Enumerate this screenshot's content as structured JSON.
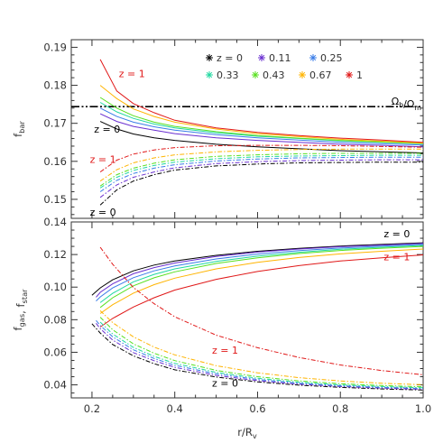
{
  "chart_data": [
    {
      "type": "line",
      "panel": "top",
      "ylabel": "f_bar",
      "xlim": [
        0.15,
        1.0
      ],
      "ylim": [
        0.145,
        0.192
      ],
      "xticks": [
        "0.2",
        "0.4",
        "0.6",
        "0.8",
        "1.0"
      ],
      "yticks": [
        "0.15",
        "0.16",
        "0.17",
        "0.18",
        "0.19"
      ],
      "grid": false,
      "legend": {
        "placement": "top-right",
        "entries": [
          {
            "label": "z = 0",
            "color": "#000000"
          },
          {
            "label": "0.11",
            "color": "#6a2fd0"
          },
          {
            "label": "0.25",
            "color": "#3a7de8"
          },
          {
            "label": "0.33",
            "color": "#20d8a0"
          },
          {
            "label": "0.43",
            "color": "#58e020"
          },
          {
            "label": "0.67",
            "color": "#ffb400"
          },
          {
            "label": "1",
            "color": "#e01818"
          }
        ]
      },
      "reference_line": {
        "label": "Ω_b/Ω_m",
        "y": 0.1744,
        "style": "dash-dot-dot"
      },
      "annotations": [
        {
          "text": "z = 1",
          "x": 0.265,
          "y": 0.1822,
          "color": "#e01818"
        },
        {
          "text": "z = 0",
          "x": 0.205,
          "y": 0.1675,
          "color": "#000000"
        },
        {
          "text": "z = 1",
          "x": 0.195,
          "y": 0.1596,
          "color": "#e01818"
        },
        {
          "text": "z = 0",
          "x": 0.195,
          "y": 0.1457,
          "color": "#000000"
        }
      ],
      "series": [
        {
          "redshift": "0",
          "color": "#000000",
          "style": "solid",
          "x": [
            0.22,
            0.26,
            0.3,
            0.35,
            0.4,
            0.5,
            0.6,
            0.7,
            0.8,
            0.9,
            1.0
          ],
          "values": [
            0.1705,
            0.1685,
            0.1672,
            0.1662,
            0.1655,
            0.1645,
            0.1638,
            0.1633,
            0.1628,
            0.1625,
            0.1622
          ]
        },
        {
          "redshift": "0.11",
          "color": "#6a2fd0",
          "style": "solid",
          "x": [
            0.22,
            0.26,
            0.3,
            0.35,
            0.4,
            0.5,
            0.6,
            0.7,
            0.8,
            0.9,
            1.0
          ],
          "values": [
            0.1725,
            0.1705,
            0.1692,
            0.1682,
            0.1673,
            0.1662,
            0.1655,
            0.165,
            0.1645,
            0.1642,
            0.1638
          ]
        },
        {
          "redshift": "0.25",
          "color": "#3a7de8",
          "style": "solid",
          "x": [
            0.22,
            0.26,
            0.3,
            0.35,
            0.4,
            0.5,
            0.6,
            0.7,
            0.8,
            0.9,
            1.0
          ],
          "values": [
            0.174,
            0.1718,
            0.1703,
            0.1691,
            0.1682,
            0.167,
            0.1662,
            0.1656,
            0.165,
            0.1646,
            0.1643
          ]
        },
        {
          "redshift": "0.33",
          "color": "#20d8a0",
          "style": "solid",
          "x": [
            0.22,
            0.26,
            0.3,
            0.35,
            0.4,
            0.5,
            0.6,
            0.7,
            0.8,
            0.9,
            1.0
          ],
          "values": [
            0.1755,
            0.173,
            0.1713,
            0.1698,
            0.1688,
            0.1675,
            0.1666,
            0.166,
            0.1654,
            0.165,
            0.1646
          ]
        },
        {
          "redshift": "0.43",
          "color": "#58e020",
          "style": "solid",
          "x": [
            0.22,
            0.26,
            0.3,
            0.35,
            0.4,
            0.5,
            0.6,
            0.7,
            0.8,
            0.9,
            1.0
          ],
          "values": [
            0.1768,
            0.174,
            0.172,
            0.1703,
            0.1692,
            0.1678,
            0.1668,
            0.1661,
            0.1655,
            0.1651,
            0.1647
          ]
        },
        {
          "redshift": "0.67",
          "color": "#ffb400",
          "style": "solid",
          "x": [
            0.22,
            0.26,
            0.3,
            0.35,
            0.4,
            0.5,
            0.6,
            0.7,
            0.8,
            0.9,
            1.0
          ],
          "values": [
            0.18,
            0.1765,
            0.1738,
            0.1718,
            0.1703,
            0.1685,
            0.1673,
            0.1665,
            0.1658,
            0.1653,
            0.1648
          ]
        },
        {
          "redshift": "1",
          "color": "#e01818",
          "style": "solid",
          "x": [
            0.22,
            0.26,
            0.3,
            0.35,
            0.4,
            0.5,
            0.6,
            0.7,
            0.8,
            0.9,
            1.0
          ],
          "values": [
            0.1868,
            0.1785,
            0.1752,
            0.1728,
            0.1708,
            0.1688,
            0.1676,
            0.1668,
            0.1661,
            0.1656,
            0.165
          ]
        },
        {
          "redshift": "0",
          "color": "#000000",
          "style": "dashdot",
          "x": [
            0.22,
            0.26,
            0.3,
            0.35,
            0.4,
            0.5,
            0.6,
            0.7,
            0.8,
            0.9,
            1.0
          ],
          "values": [
            0.1485,
            0.1525,
            0.1548,
            0.1565,
            0.1577,
            0.1588,
            0.1593,
            0.1596,
            0.1597,
            0.1598,
            0.1598
          ]
        },
        {
          "redshift": "0.11",
          "color": "#6a2fd0",
          "style": "dashdot",
          "x": [
            0.22,
            0.26,
            0.3,
            0.35,
            0.4,
            0.5,
            0.6,
            0.7,
            0.8,
            0.9,
            1.0
          ],
          "values": [
            0.1505,
            0.1538,
            0.1558,
            0.1572,
            0.1583,
            0.1594,
            0.1599,
            0.1602,
            0.1603,
            0.1604,
            0.1604
          ]
        },
        {
          "redshift": "0.25",
          "color": "#3a7de8",
          "style": "dashdot",
          "x": [
            0.22,
            0.26,
            0.3,
            0.35,
            0.4,
            0.5,
            0.6,
            0.7,
            0.8,
            0.9,
            1.0
          ],
          "values": [
            0.152,
            0.155,
            0.1568,
            0.1582,
            0.1591,
            0.1601,
            0.1606,
            0.1609,
            0.161,
            0.1611,
            0.1611
          ]
        },
        {
          "redshift": "0.33",
          "color": "#20d8a0",
          "style": "dashdot",
          "x": [
            0.22,
            0.26,
            0.3,
            0.35,
            0.4,
            0.5,
            0.6,
            0.7,
            0.8,
            0.9,
            1.0
          ],
          "values": [
            0.153,
            0.1558,
            0.1576,
            0.1589,
            0.1598,
            0.1607,
            0.1612,
            0.1614,
            0.1615,
            0.1616,
            0.1616
          ]
        },
        {
          "redshift": "0.43",
          "color": "#58e020",
          "style": "dashdot",
          "x": [
            0.22,
            0.26,
            0.3,
            0.35,
            0.4,
            0.5,
            0.6,
            0.7,
            0.8,
            0.9,
            1.0
          ],
          "values": [
            0.1535,
            0.1565,
            0.1582,
            0.1595,
            0.1604,
            0.1613,
            0.1617,
            0.162,
            0.1621,
            0.1621,
            0.1621
          ]
        },
        {
          "redshift": "0.67",
          "color": "#ffb400",
          "style": "dashdot",
          "x": [
            0.22,
            0.26,
            0.3,
            0.35,
            0.4,
            0.5,
            0.6,
            0.7,
            0.8,
            0.9,
            1.0
          ],
          "values": [
            0.1548,
            0.1578,
            0.1596,
            0.1609,
            0.1617,
            0.1625,
            0.1629,
            0.1631,
            0.1632,
            0.1632,
            0.1632
          ]
        },
        {
          "redshift": "1",
          "color": "#e01818",
          "style": "dashdot",
          "x": [
            0.22,
            0.26,
            0.3,
            0.35,
            0.4,
            0.5,
            0.6,
            0.7,
            0.8,
            0.9,
            1.0
          ],
          "values": [
            0.1572,
            0.1603,
            0.1619,
            0.163,
            0.1636,
            0.1641,
            0.1642,
            0.1642,
            0.1641,
            0.1639,
            0.1637
          ]
        }
      ]
    },
    {
      "type": "line",
      "panel": "bottom",
      "xlabel": "r/R_v",
      "ylabel": "f_gas, f_star",
      "xlim": [
        0.15,
        1.0
      ],
      "ylim": [
        0.032,
        0.14
      ],
      "xticks": [
        "0.2",
        "0.4",
        "0.6",
        "0.8",
        "1.0"
      ],
      "yticks": [
        "0.04",
        "0.06",
        "0.08",
        "0.10",
        "0.12",
        "0.14"
      ],
      "grid": false,
      "annotations": [
        {
          "text": "z = 0",
          "x": 0.905,
          "y": 0.1305,
          "color": "#000000"
        },
        {
          "text": "z = 1",
          "x": 0.905,
          "y": 0.1165,
          "color": "#e01818"
        },
        {
          "text": "z = 1",
          "x": 0.49,
          "y": 0.0592,
          "color": "#e01818"
        },
        {
          "text": "z = 0",
          "x": 0.49,
          "y": 0.0388,
          "color": "#000000"
        }
      ],
      "series": [
        {
          "redshift": "0",
          "color": "#000000",
          "style": "solid",
          "x": [
            0.2,
            0.22,
            0.25,
            0.3,
            0.35,
            0.4,
            0.5,
            0.6,
            0.7,
            0.8,
            0.9,
            1.0
          ],
          "values": [
            0.095,
            0.0995,
            0.1045,
            0.11,
            0.1135,
            0.116,
            0.1195,
            0.122,
            0.1238,
            0.1252,
            0.1262,
            0.1272
          ]
        },
        {
          "redshift": "0.11",
          "color": "#6a2fd0",
          "style": "solid",
          "x": [
            0.21,
            0.22,
            0.25,
            0.3,
            0.35,
            0.4,
            0.5,
            0.6,
            0.7,
            0.8,
            0.9,
            1.0
          ],
          "values": [
            0.0938,
            0.0968,
            0.102,
            0.1082,
            0.112,
            0.1148,
            0.1188,
            0.1215,
            0.1234,
            0.1248,
            0.1258,
            0.1268
          ]
        },
        {
          "redshift": "0.25",
          "color": "#3a7de8",
          "style": "solid",
          "x": [
            0.21,
            0.22,
            0.25,
            0.3,
            0.35,
            0.4,
            0.5,
            0.6,
            0.7,
            0.8,
            0.9,
            1.0
          ],
          "values": [
            0.0915,
            0.094,
            0.0995,
            0.1058,
            0.11,
            0.113,
            0.1173,
            0.1203,
            0.1224,
            0.124,
            0.1252,
            0.1262
          ]
        },
        {
          "redshift": "0.33",
          "color": "#20d8a0",
          "style": "solid",
          "x": [
            0.22,
            0.25,
            0.3,
            0.35,
            0.4,
            0.5,
            0.6,
            0.7,
            0.8,
            0.9,
            1.0
          ],
          "values": [
            0.0905,
            0.0962,
            0.1032,
            0.1078,
            0.1112,
            0.1158,
            0.119,
            0.1214,
            0.1232,
            0.1245,
            0.1256
          ]
        },
        {
          "redshift": "0.43",
          "color": "#58e020",
          "style": "solid",
          "x": [
            0.22,
            0.25,
            0.3,
            0.35,
            0.4,
            0.5,
            0.6,
            0.7,
            0.8,
            0.9,
            1.0
          ],
          "values": [
            0.0875,
            0.0935,
            0.1008,
            0.1057,
            0.1094,
            0.1145,
            0.118,
            0.1206,
            0.1225,
            0.1239,
            0.125
          ]
        },
        {
          "redshift": "0.67",
          "color": "#ffb400",
          "style": "solid",
          "x": [
            0.22,
            0.25,
            0.3,
            0.35,
            0.4,
            0.5,
            0.6,
            0.7,
            0.8,
            0.9,
            1.0
          ],
          "values": [
            0.0838,
            0.0892,
            0.0963,
            0.1015,
            0.1055,
            0.1112,
            0.1152,
            0.1182,
            0.1204,
            0.122,
            0.1234
          ]
        },
        {
          "redshift": "1",
          "color": "#e01818",
          "style": "solid",
          "x": [
            0.22,
            0.25,
            0.3,
            0.35,
            0.4,
            0.5,
            0.6,
            0.7,
            0.8,
            0.9,
            1.0
          ],
          "values": [
            0.0755,
            0.0808,
            0.0878,
            0.0935,
            0.0982,
            0.1048,
            0.1096,
            0.1132,
            0.116,
            0.118,
            0.1198
          ]
        },
        {
          "redshift": "0",
          "color": "#000000",
          "style": "dashdot",
          "x": [
            0.2,
            0.22,
            0.25,
            0.3,
            0.35,
            0.4,
            0.5,
            0.6,
            0.7,
            0.8,
            0.9,
            1.0
          ],
          "values": [
            0.0775,
            0.0718,
            0.0648,
            0.0578,
            0.053,
            0.0492,
            0.0448,
            0.0418,
            0.0398,
            0.0385,
            0.0375,
            0.0368
          ]
        },
        {
          "redshift": "0.11",
          "color": "#6a2fd0",
          "style": "dashdot",
          "x": [
            0.21,
            0.22,
            0.25,
            0.3,
            0.35,
            0.4,
            0.5,
            0.6,
            0.7,
            0.8,
            0.9,
            1.0
          ],
          "values": [
            0.0778,
            0.0745,
            0.0675,
            0.0598,
            0.0548,
            0.0508,
            0.0458,
            0.0426,
            0.0404,
            0.039,
            0.038,
            0.0373
          ]
        },
        {
          "redshift": "0.25",
          "color": "#3a7de8",
          "style": "dashdot",
          "x": [
            0.21,
            0.22,
            0.25,
            0.3,
            0.35,
            0.4,
            0.5,
            0.6,
            0.7,
            0.8,
            0.9,
            1.0
          ],
          "values": [
            0.0795,
            0.0765,
            0.0695,
            0.0615,
            0.0562,
            0.052,
            0.0468,
            0.0433,
            0.041,
            0.0395,
            0.0385,
            0.0378
          ]
        },
        {
          "redshift": "0.33",
          "color": "#20d8a0",
          "style": "dashdot",
          "x": [
            0.22,
            0.25,
            0.3,
            0.35,
            0.4,
            0.5,
            0.6,
            0.7,
            0.8,
            0.9,
            1.0
          ],
          "values": [
            0.0785,
            0.0712,
            0.063,
            0.0575,
            0.0532,
            0.0477,
            0.044,
            0.0416,
            0.04,
            0.039,
            0.0382
          ]
        },
        {
          "redshift": "0.43",
          "color": "#58e020",
          "style": "dashdot",
          "x": [
            0.22,
            0.25,
            0.3,
            0.35,
            0.4,
            0.5,
            0.6,
            0.7,
            0.8,
            0.9,
            1.0
          ],
          "values": [
            0.0815,
            0.0738,
            0.0652,
            0.0594,
            0.0549,
            0.0489,
            0.045,
            0.0424,
            0.0407,
            0.0396,
            0.0388
          ]
        },
        {
          "redshift": "0.67",
          "color": "#ffb400",
          "style": "dashdot",
          "x": [
            0.22,
            0.25,
            0.3,
            0.35,
            0.4,
            0.5,
            0.6,
            0.7,
            0.8,
            0.9,
            1.0
          ],
          "values": [
            0.0855,
            0.0782,
            0.0695,
            0.0632,
            0.0584,
            0.0518,
            0.0474,
            0.0444,
            0.0424,
            0.041,
            0.0401
          ]
        },
        {
          "redshift": "1",
          "color": "#e01818",
          "style": "dashdot",
          "x": [
            0.22,
            0.25,
            0.3,
            0.35,
            0.4,
            0.5,
            0.6,
            0.7,
            0.8,
            0.9,
            1.0
          ],
          "values": [
            0.1245,
            0.114,
            0.0998,
            0.0898,
            0.0818,
            0.0705,
            0.0628,
            0.0568,
            0.0522,
            0.0488,
            0.0462
          ]
        }
      ]
    }
  ]
}
